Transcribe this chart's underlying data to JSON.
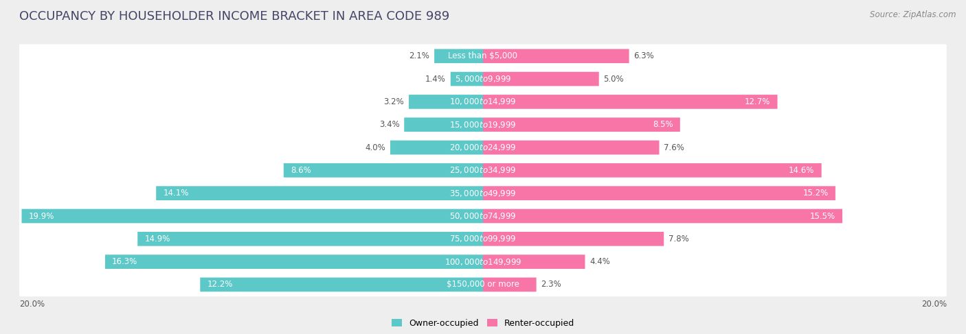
{
  "title": "OCCUPANCY BY HOUSEHOLDER INCOME BRACKET IN AREA CODE 989",
  "source": "Source: ZipAtlas.com",
  "categories": [
    "Less than $5,000",
    "$5,000 to $9,999",
    "$10,000 to $14,999",
    "$15,000 to $19,999",
    "$20,000 to $24,999",
    "$25,000 to $34,999",
    "$35,000 to $49,999",
    "$50,000 to $74,999",
    "$75,000 to $99,999",
    "$100,000 to $149,999",
    "$150,000 or more"
  ],
  "owner_values": [
    2.1,
    1.4,
    3.2,
    3.4,
    4.0,
    8.6,
    14.1,
    19.9,
    14.9,
    16.3,
    12.2
  ],
  "renter_values": [
    6.3,
    5.0,
    12.7,
    8.5,
    7.6,
    14.6,
    15.2,
    15.5,
    7.8,
    4.4,
    2.3
  ],
  "owner_color": "#5CC8C8",
  "renter_color": "#F875A8",
  "axis_max": 20.0,
  "bg_color": "#eeeeee",
  "bar_bg_color": "#ffffff",
  "title_fontsize": 13,
  "label_fontsize": 8.5,
  "tick_fontsize": 8.5,
  "source_fontsize": 8.5,
  "legend_fontsize": 9,
  "bar_height": 0.62,
  "owner_threshold": 8.0,
  "renter_threshold": 8.0,
  "legend_label_owner": "Owner-occupied",
  "legend_label_renter": "Renter-occupied"
}
